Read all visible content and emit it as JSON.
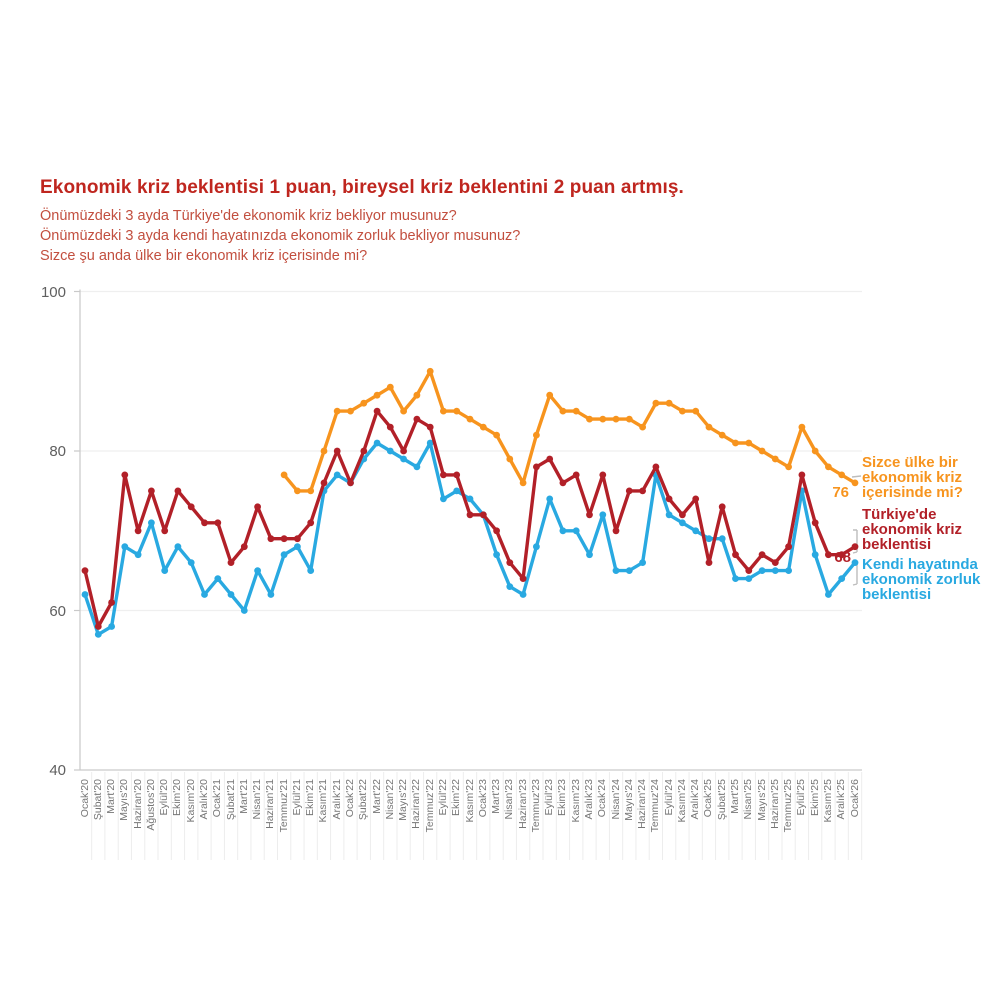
{
  "header": {
    "title": "Ekonomik kriz beklentisi 1 puan, bireysel kriz beklentini 2 puan artmış.",
    "subtitles": [
      "Önümüzdeki 3 ayda Türkiye'de ekonomik kriz bekliyor musunuz?",
      "Önümüzdeki 3 ayda kendi hayatınızda ekonomik zorluk bekliyor musunuz?",
      "Sizce şu anda ülke bir ekonomik kriz içerisinde mi?"
    ]
  },
  "chart_data": {
    "type": "line",
    "title": "Ekonomik kriz beklentisi 1 puan, bireysel kriz beklentini 2 puan artmış.",
    "ylim": [
      40,
      100
    ],
    "y_ticks": [
      100,
      80,
      60,
      40
    ],
    "grid": "horizontal",
    "legend_position": "right",
    "x_labels": [
      "Ocak'20",
      "Şubat'20",
      "Mart'20",
      "Mayıs'20",
      "Haziran'20",
      "Ağustos'20",
      "Eylül'20",
      "Ekim'20",
      "Kasım'20",
      "Aralık'20",
      "Ocak'21",
      "Şubat'21",
      "Mart'21",
      "Nisan'21",
      "Haziran'21",
      "Temmuz'21",
      "Eylül'21",
      "Ekim'21",
      "Kasım'21",
      "Aralık'21",
      "Ocak'22",
      "Şubat'22",
      "Mart'22",
      "Nisan'22",
      "Mayıs'22",
      "Haziran'22",
      "Temmuz'22",
      "Eylül'22",
      "Ekim'22",
      "Kasım'22",
      "Ocak'23",
      "Mart'23",
      "Nisan'23",
      "Haziran'23",
      "Temmuz'23",
      "Eylül'23",
      "Ekim'23",
      "Kasım'23",
      "Aralık'23",
      "Ocak'24",
      "Nisan'24",
      "Mayıs'24",
      "Haziran'24",
      "Temmuz'24",
      "Eylül'24",
      "Kasım'24",
      "Aralık'24",
      "Ocak'25",
      "Şubat'25",
      "Mart'25",
      "Nisan'25",
      "Mayıs'25",
      "Haziran'25",
      "Temmuz'25",
      "Eylül'25",
      "Ekim'25",
      "Kasım'25",
      "Aralık'25",
      "Ocak'26"
    ],
    "series": [
      {
        "name": "Sizce ülke bir ekonomik kriz içerisinde mi?",
        "legend_lines": [
          "Sizce ülke bir",
          "ekonomik kriz",
          "içerisinde mi?"
        ],
        "color": "#F7941E",
        "end_label": "76",
        "values": [
          null,
          null,
          null,
          null,
          null,
          null,
          null,
          null,
          null,
          null,
          null,
          null,
          null,
          null,
          null,
          77,
          75,
          75,
          80,
          85,
          85,
          86,
          87,
          88,
          85,
          87,
          90,
          85,
          85,
          84,
          83,
          82,
          79,
          76,
          82,
          87,
          85,
          85,
          84,
          84,
          84,
          84,
          83,
          86,
          86,
          85,
          85,
          83,
          82,
          81,
          81,
          80,
          79,
          78,
          83,
          80,
          78,
          77,
          76
        ]
      },
      {
        "name": "Türkiye'de ekonomik kriz beklentisi",
        "legend_lines": [
          "Türkiye'de",
          "ekonomik kriz",
          "beklentisi"
        ],
        "color": "#B22028",
        "end_label": "68",
        "values": [
          65,
          58,
          61,
          77,
          70,
          75,
          70,
          75,
          73,
          71,
          71,
          66,
          68,
          73,
          69,
          69,
          69,
          71,
          76,
          80,
          76,
          80,
          85,
          83,
          80,
          84,
          83,
          77,
          77,
          72,
          72,
          70,
          66,
          64,
          78,
          79,
          76,
          77,
          72,
          77,
          70,
          75,
          75,
          78,
          74,
          72,
          74,
          66,
          73,
          67,
          65,
          67,
          66,
          68,
          77,
          71,
          67,
          67,
          68
        ]
      },
      {
        "name": "Kendi hayatında ekonomik zorluk beklentisi",
        "legend_lines": [
          "Kendi hayatında",
          "ekonomik zorluk",
          "beklentisi"
        ],
        "color": "#29A9E1",
        "end_label": "",
        "values": [
          62,
          57,
          58,
          68,
          67,
          71,
          65,
          68,
          66,
          62,
          64,
          62,
          60,
          65,
          62,
          67,
          68,
          65,
          75,
          77,
          76,
          79,
          81,
          80,
          79,
          78,
          81,
          74,
          75,
          74,
          72,
          67,
          63,
          62,
          68,
          74,
          70,
          70,
          67,
          72,
          65,
          65,
          66,
          77,
          72,
          71,
          70,
          69,
          69,
          64,
          64,
          65,
          65,
          65,
          75,
          67,
          62,
          64,
          66
        ]
      }
    ]
  }
}
